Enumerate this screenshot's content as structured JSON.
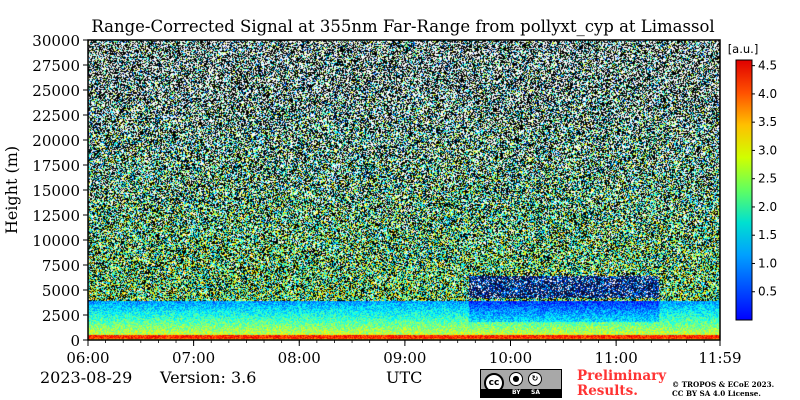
{
  "chart_data": {
    "type": "heatmap",
    "title": "Range-Corrected Signal at 355nm Far-Range from pollyxt_cyp at Limassol",
    "xlabel": "UTC",
    "ylabel": "Height (m)",
    "x_ticks": [
      "06:00",
      "07:00",
      "08:00",
      "09:00",
      "10:00",
      "11:00",
      "11:59"
    ],
    "x_tick_hours": [
      6.0,
      7.0,
      8.0,
      9.0,
      10.0,
      11.0,
      11.9833
    ],
    "xlim_hours": [
      6.0,
      11.9833
    ],
    "y_ticks": [
      0,
      2500,
      5000,
      7500,
      10000,
      12500,
      15000,
      17500,
      20000,
      22500,
      25000,
      27500,
      30000
    ],
    "ylim": [
      0,
      30000
    ],
    "colorbar": {
      "unit_label": "[a.u.]",
      "range": [
        0.0,
        4.6
      ],
      "ticks": [
        0.5,
        1.0,
        1.5,
        2.0,
        2.5,
        3.0,
        3.5,
        4.0,
        4.5
      ],
      "colormap": "jet"
    },
    "features": {
      "near_surface_band_height_m": [
        0,
        600
      ],
      "boundary_layer_top_m": 4000,
      "cloud_layer": {
        "start_hour": 9.6,
        "end_hour": 11.4,
        "base_m": 4200,
        "top_m": 6500
      }
    }
  },
  "footer": {
    "date": "2023-08-29",
    "version": "Version: 3.6",
    "utc_label": "UTC",
    "preliminary_line1": "Preliminary",
    "preliminary_line2": "Results.",
    "copyright_line1": "© TROPOS & ECoE 2023.",
    "copyright_line2": "CC BY SA 4.0 License."
  },
  "license_badge": {
    "cc": "cc",
    "by": "BY",
    "sa": "SA"
  }
}
